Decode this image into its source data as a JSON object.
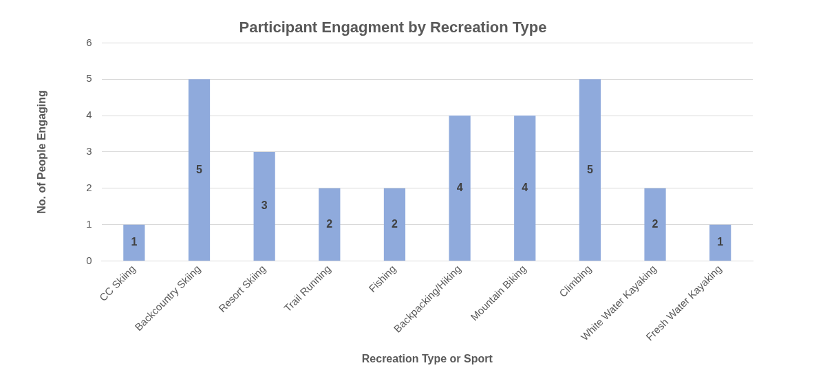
{
  "chart_data": {
    "type": "bar",
    "title": "Participant Engagment by Recreation Type",
    "xlabel": "Recreation Type or Sport",
    "ylabel": "No. of People Engaging",
    "categories": [
      "CC Skiing",
      "Backcountry Skiing",
      "Resort Skiing",
      "Trail Running",
      "Fishing",
      "Backpacking/Hiking",
      "Mountain Biking",
      "Climbing",
      "White Water Kayaking",
      "Fresh Water Kayaking"
    ],
    "values": [
      1,
      5,
      3,
      2,
      2,
      4,
      4,
      5,
      2,
      1
    ],
    "color": "#8faadc",
    "ylim": [
      0,
      6
    ],
    "yticks": [
      0,
      1,
      2,
      3,
      4,
      5,
      6
    ],
    "grid": "y",
    "data_labels": true,
    "legend": false
  }
}
